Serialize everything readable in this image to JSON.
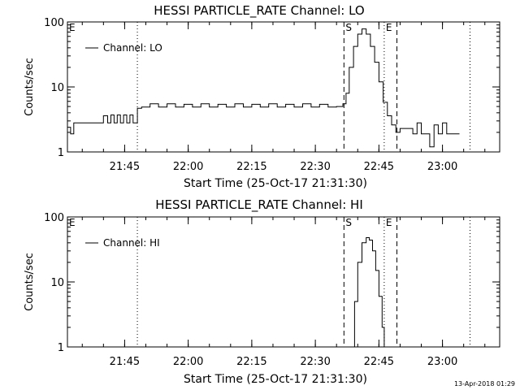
{
  "chart_data": [
    {
      "type": "line",
      "title": "HESSI PARTICLE_RATE Channel: LO",
      "xlabel": "Start Time (25-Oct-17 21:31:30)",
      "ylabel": "Counts/sec",
      "yscale": "log",
      "ylim": [
        1,
        100
      ],
      "xlim": [
        "21:31:30",
        "23:13:30"
      ],
      "xticks": [
        "21:45",
        "22:00",
        "22:15",
        "22:30",
        "22:45",
        "23:00"
      ],
      "yticks": [
        "1",
        "10",
        "100"
      ],
      "legend": "upper-left",
      "grid": false,
      "markers": [
        {
          "time": "21:31:30",
          "style": "dotted",
          "label": "E"
        },
        {
          "time": "21:48:00",
          "style": "dotted",
          "label": ""
        },
        {
          "time": "22:36:45",
          "style": "dashed",
          "label": "S"
        },
        {
          "time": "22:46:15",
          "style": "dotted",
          "label": "E"
        },
        {
          "time": "22:49:15",
          "style": "dashed",
          "label": ""
        },
        {
          "time": "23:06:30",
          "style": "dotted",
          "label": ""
        }
      ],
      "series": [
        {
          "name": "Channel: LO",
          "x": [
            "21:31:30",
            "21:32:15",
            "21:33:00",
            "21:39:00",
            "21:40:00",
            "21:41:00",
            "21:41:45",
            "21:42:30",
            "21:43:15",
            "21:44:00",
            "21:44:45",
            "21:45:30",
            "21:46:15",
            "21:47:00",
            "21:48:00",
            "21:49:00",
            "21:51:00",
            "21:53:00",
            "21:55:00",
            "21:57:00",
            "21:59:00",
            "22:01:00",
            "22:03:00",
            "22:05:00",
            "22:07:00",
            "22:09:00",
            "22:11:00",
            "22:13:00",
            "22:15:00",
            "22:17:00",
            "22:19:00",
            "22:21:00",
            "22:23:00",
            "22:25:00",
            "22:27:00",
            "22:29:00",
            "22:31:00",
            "22:33:00",
            "22:35:00",
            "22:36:30",
            "22:37:15",
            "22:38:00",
            "22:39:00",
            "22:40:00",
            "22:41:00",
            "22:42:00",
            "22:43:00",
            "22:44:00",
            "22:45:00",
            "22:46:00",
            "22:47:00",
            "22:48:00",
            "22:49:00",
            "22:50:00",
            "22:53:00",
            "22:54:00",
            "22:55:00",
            "22:56:00",
            "22:57:00",
            "22:58:00",
            "22:59:00",
            "23:00:00",
            "23:01:00",
            "23:04:00"
          ],
          "y": [
            2.4,
            1.9,
            2.8,
            2.8,
            3.6,
            2.8,
            3.7,
            2.8,
            3.7,
            2.8,
            3.7,
            2.8,
            3.7,
            2.8,
            4.7,
            4.9,
            5.5,
            4.9,
            5.5,
            4.9,
            5.4,
            4.9,
            5.5,
            4.9,
            5.4,
            4.9,
            5.5,
            4.9,
            5.4,
            4.9,
            5.5,
            4.9,
            5.4,
            4.9,
            5.5,
            4.9,
            5.4,
            4.9,
            5.0,
            5.5,
            8,
            20,
            42,
            65,
            78,
            65,
            42,
            24,
            12,
            5.8,
            3.6,
            2.6,
            2.0,
            2.3,
            1.9,
            2.8,
            1.9,
            1.9,
            1.2,
            2.6,
            1.9,
            2.8,
            1.9,
            1.9
          ]
        }
      ]
    },
    {
      "type": "line",
      "title": "HESSI PARTICLE_RATE Channel: HI",
      "xlabel": "Start Time (25-Oct-17 21:31:30)",
      "ylabel": "Counts/sec",
      "yscale": "log",
      "ylim": [
        1,
        100
      ],
      "xlim": [
        "21:31:30",
        "23:13:30"
      ],
      "xticks": [
        "21:45",
        "22:00",
        "22:15",
        "22:30",
        "22:45",
        "23:00"
      ],
      "yticks": [
        "1",
        "10",
        "100"
      ],
      "legend": "upper-left",
      "grid": false,
      "markers": [
        {
          "time": "21:31:30",
          "style": "dotted",
          "label": "E"
        },
        {
          "time": "21:48:00",
          "style": "dotted",
          "label": ""
        },
        {
          "time": "22:36:45",
          "style": "dashed",
          "label": "S"
        },
        {
          "time": "22:46:15",
          "style": "dotted",
          "label": "E"
        },
        {
          "time": "22:49:15",
          "style": "dashed",
          "label": ""
        },
        {
          "time": "23:06:30",
          "style": "dotted",
          "label": ""
        }
      ],
      "series": [
        {
          "name": "Channel: HI",
          "x": [
            "22:38:30",
            "22:39:15",
            "22:40:00",
            "22:41:00",
            "22:42:00",
            "22:42:45",
            "22:43:30",
            "22:44:15",
            "22:45:00",
            "22:45:45",
            "22:46:15"
          ],
          "y": [
            1.0,
            5,
            20,
            40,
            48,
            44,
            30,
            15,
            6,
            2,
            1.0
          ]
        }
      ]
    }
  ],
  "footer": {
    "timestamp": "13-Apr-2018 01:29"
  }
}
